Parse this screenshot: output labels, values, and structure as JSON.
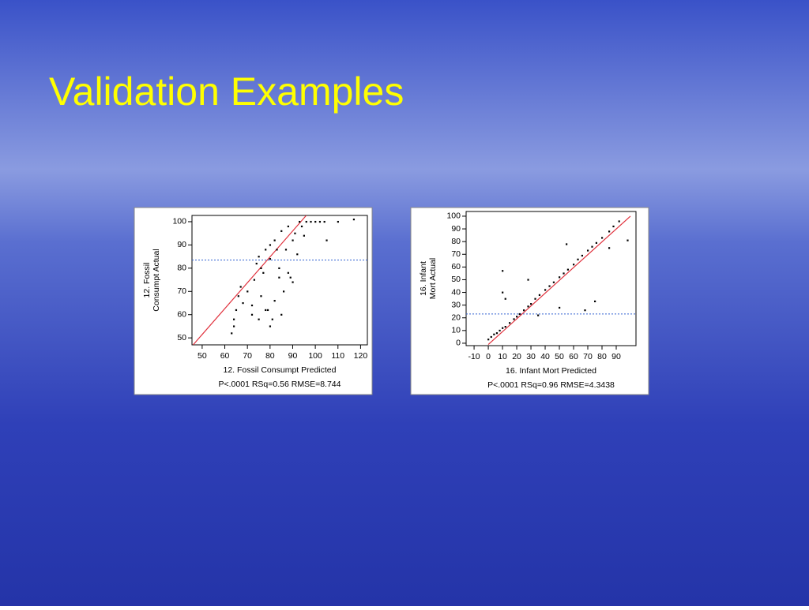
{
  "title": "Validation Examples",
  "chart_data": [
    {
      "type": "scatter",
      "ylabel": [
        "12. Fossil",
        "Consumpt Actual"
      ],
      "xlabel": "12. Fossil Consumpt Predicted",
      "subtitle": "P<.0001 RSq=0.56 RMSE=8.744",
      "xlim": [
        45.5,
        123
      ],
      "ylim": [
        47,
        102.7
      ],
      "xticks": [
        50,
        60,
        70,
        80,
        90,
        100,
        110,
        120
      ],
      "yticks": [
        50,
        60,
        70,
        80,
        90,
        100
      ],
      "color": "#000000",
      "fit_color": "#e0303c",
      "mean_color": "#3060d0",
      "mean_line": 83.5,
      "fit": {
        "x": [
          46,
          96
        ],
        "y": [
          47,
          102.7
        ]
      },
      "x": [
        63,
        64,
        65,
        64,
        66,
        67,
        68,
        70,
        72,
        73,
        74,
        75,
        76,
        77,
        78,
        79,
        80,
        80,
        81,
        82,
        83,
        84,
        85,
        86,
        87,
        88,
        89,
        90,
        91,
        92,
        93,
        94,
        95,
        96,
        98,
        100,
        102,
        104,
        105,
        110,
        117,
        75,
        78,
        80,
        82,
        85,
        84,
        88,
        90,
        72,
        76
      ],
      "values": [
        52,
        58,
        62,
        55,
        68,
        72,
        65,
        70,
        60,
        75,
        82,
        85,
        68,
        78,
        88,
        62,
        90,
        84,
        58,
        92,
        88,
        80,
        96,
        70,
        88,
        98,
        76,
        92,
        95,
        86,
        100,
        98,
        94,
        100,
        100,
        100,
        100,
        100,
        92,
        100,
        101,
        58,
        62,
        55,
        66,
        60,
        76,
        78,
        74,
        64,
        80
      ]
    },
    {
      "type": "scatter",
      "ylabel": [
        "16. Infant",
        "Mort Actual"
      ],
      "xlabel": "16. Infant Mort Predicted",
      "subtitle": "P<.0001 RSq=0.96 RMSE=4.3438",
      "xlim": [
        -15.6,
        103.9
      ],
      "ylim": [
        -1.9,
        103.7
      ],
      "xticks": [
        -10,
        0,
        10,
        20,
        30,
        40,
        50,
        60,
        70,
        80,
        90
      ],
      "yticks": [
        0,
        10,
        20,
        30,
        40,
        50,
        60,
        70,
        80,
        90,
        100
      ],
      "color": "#000000",
      "fit_color": "#e0303c",
      "mean_color": "#3060d0",
      "mean_line": 23,
      "fit": {
        "x": [
          0,
          100
        ],
        "y": [
          -1,
          100
        ]
      },
      "x": [
        0,
        2,
        4,
        6,
        8,
        10,
        12,
        15,
        18,
        20,
        22,
        25,
        28,
        30,
        33,
        36,
        40,
        43,
        46,
        50,
        53,
        56,
        60,
        63,
        66,
        70,
        73,
        76,
        80,
        85,
        88,
        92,
        10,
        10,
        12,
        28,
        50,
        68,
        75,
        98,
        35,
        85,
        55
      ],
      "values": [
        3,
        5,
        7,
        8,
        10,
        12,
        13,
        16,
        19,
        21,
        23,
        26,
        29,
        31,
        35,
        38,
        42,
        45,
        48,
        52,
        55,
        58,
        62,
        66,
        69,
        73,
        76,
        79,
        83,
        88,
        92,
        96,
        57,
        40,
        35,
        50,
        28,
        26,
        33,
        81,
        22,
        75,
        78
      ]
    }
  ]
}
